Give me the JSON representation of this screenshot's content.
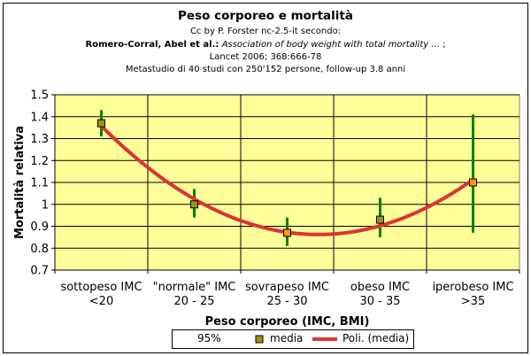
{
  "header": {
    "title": "Peso corporeo e mortalità",
    "line1": "Cc by P. Forster nc-2.5-it secondo:",
    "line2_authors": "Romero-Corral, Abel et al.:",
    "line2_article": "Association of body weight with total mortality ...",
    "line2_tail": ";",
    "line3": "Lancet 2006; 368:666-78",
    "line4": "Metastudio di 40 studi con 250'152 persone, follow-up 3.8 anni"
  },
  "colors": {
    "plot_bg": "#ffff99",
    "marker_fill": "#999900",
    "error_bar": "#008000",
    "fit_line": "#dd3333",
    "fit_marker_fill": "#ff9900"
  },
  "chart_data": {
    "type": "scatter",
    "title": "Peso corporeo e mortalità",
    "xlabel": "Peso corporeo (IMC, BMI)",
    "ylabel": "Mortalità relativa",
    "ylim": [
      0.7,
      1.5
    ],
    "yticks": [
      "0.7",
      "0.8",
      "0.9",
      "1",
      "1.1",
      "1.2",
      "1.3",
      "1.4",
      "1.5"
    ],
    "grid": true,
    "categories": [
      {
        "line1": "sottopeso IMC",
        "line2": "<20"
      },
      {
        "line1": "\"normale\" IMC",
        "line2": "20 - 25"
      },
      {
        "line1": "sovrapeso IMC",
        "line2": "25 - 30"
      },
      {
        "line1": "obeso IMC",
        "line2": "30 - 35"
      },
      {
        "line1": "iperobeso IMC",
        "line2": ">35"
      }
    ],
    "series": [
      {
        "name": "media",
        "values": [
          1.37,
          1.0,
          0.87,
          0.93,
          1.1
        ],
        "ci_low": [
          1.31,
          0.94,
          0.81,
          0.85,
          0.87
        ],
        "ci_high": [
          1.43,
          1.07,
          0.94,
          1.03,
          1.41
        ]
      }
    ],
    "fit": {
      "name": "Poli. (media)",
      "type": "polynomial",
      "order": 2
    },
    "legend": {
      "position": "bottom",
      "entries": [
        "95%",
        "media",
        "Poli. (media)"
      ]
    }
  }
}
